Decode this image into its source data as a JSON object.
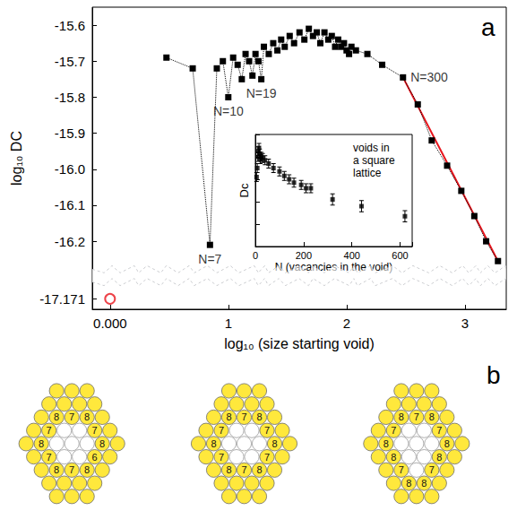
{
  "chart_data": [
    {
      "type": "line",
      "panel": "a",
      "x_label": "log₁₀ (size starting void)",
      "y_label": "log₁₀ DC",
      "xlim": [
        -0.15,
        3.35
      ],
      "xticks": [
        {
          "value": 0,
          "label": "0.000"
        },
        1,
        2,
        3
      ],
      "ylim": [
        -17.2,
        -15.55
      ],
      "yticks": [
        -17.171,
        -16.2,
        -16.1,
        {
          "value": -16,
          "label": "-16.0"
        },
        -15.9,
        -15.8,
        -15.7,
        -15.6
      ],
      "grid": false,
      "series": [
        {
          "type": "line",
          "color": "#000000",
          "marker": "square",
          "line_style": "dotted",
          "x": [
            0.477,
            0.699,
            0.845,
            0.903,
            0.954,
            1,
            1.041,
            1.079,
            1.114,
            1.146,
            1.176,
            1.204,
            1.23,
            1.255,
            1.279,
            1.301,
            1.342,
            1.38,
            1.415,
            1.447,
            1.477,
            1.519,
            1.556,
            1.602,
            1.643,
            1.681,
            1.716,
            1.748,
            1.778,
            1.813,
            1.845,
            1.875,
            1.903,
            1.929,
            1.954,
            1.978,
            2,
            2.021,
            2.041,
            2.079,
            2.176,
            2.301,
            2.477,
            2.602,
            2.72,
            2.85,
            2.97,
            3.08,
            3.18,
            3.28
          ],
          "values": [
            -15.69,
            -15.72,
            -16.21,
            -15.72,
            -15.7,
            -15.8,
            -15.69,
            -15.71,
            -15.75,
            -15.68,
            -15.7,
            -15.74,
            -15.68,
            -15.7,
            -15.75,
            -15.66,
            -15.68,
            -15.65,
            -15.67,
            -15.64,
            -15.66,
            -15.63,
            -15.65,
            -15.62,
            -15.64,
            -15.61,
            -15.63,
            -15.62,
            -15.65,
            -15.62,
            -15.64,
            -15.63,
            -15.66,
            -15.64,
            -15.66,
            -15.65,
            -15.67,
            -15.68,
            -15.66,
            -15.67,
            -15.68,
            -15.71,
            -15.745,
            -15.82,
            -15.92,
            -15.99,
            -16.06,
            -16.13,
            -16.2,
            -16.255
          ]
        },
        {
          "type": "line",
          "color": "#e8141c",
          "marker": "none",
          "line_style": "solid",
          "x": [
            2.477,
            3.28
          ],
          "values": [
            -15.745,
            -16.255
          ]
        },
        {
          "type": "scatter",
          "color": "#e8141c",
          "marker": "open_circle",
          "x": [
            0
          ],
          "values": [
            -17.171
          ]
        }
      ],
      "annotations": [
        {
          "text": "N=7",
          "x": 0.845,
          "y": -16.21
        },
        {
          "text": "N=10",
          "x": 1,
          "y": -15.8
        },
        {
          "text": "N=19",
          "x": 1.279,
          "y": -15.75
        },
        {
          "text": "N=300",
          "x": 2.477,
          "y": -15.745
        }
      ]
    },
    {
      "type": "scatter",
      "x_label": "N (vacancies in the void)",
      "y_label": "Dc",
      "text": "voids in a square lattice",
      "xlim": [
        0,
        650
      ],
      "xticks": [
        0,
        200,
        400,
        600
      ],
      "ylim": [
        0,
        1
      ],
      "yticks": [
        0,
        0.2,
        0.4,
        0.6,
        0.8,
        1
      ],
      "tick_labels": "x",
      "grid": false,
      "series": [
        {
          "type": "scatter",
          "color": "#000000",
          "marker": "square",
          "x": [
            5,
            8,
            10,
            12,
            15,
            18,
            20,
            25,
            30,
            40,
            55,
            75,
            100,
            120,
            140,
            160,
            190,
            210,
            230,
            320,
            440,
            620
          ],
          "values": [
            0.62,
            0.7,
            0.8,
            0.85,
            0.88,
            0.83,
            0.78,
            0.8,
            0.79,
            0.77,
            0.74,
            0.7,
            0.67,
            0.63,
            0.6,
            0.57,
            0.55,
            0.52,
            0.52,
            0.42,
            0.36,
            0.27
          ],
          "errors": [
            0.04,
            0.04,
            0.04,
            0.04,
            0.04,
            0.04,
            0.04,
            0.04,
            0.04,
            0.04,
            0.04,
            0.04,
            0.04,
            0.04,
            0.04,
            0.04,
            0.04,
            0.04,
            0.04,
            0.05,
            0.05,
            0.05
          ]
        }
      ]
    }
  ],
  "diagram": {
    "panel": "b",
    "clusters": [
      {
        "rows": [
          [
            null,
            null,
            null
          ],
          [
            null,
            null,
            null,
            null
          ],
          [
            null,
            "8",
            "7",
            "8",
            null
          ],
          [
            null,
            "7",
            false,
            false,
            "7",
            null
          ],
          [
            null,
            "8",
            false,
            false,
            false,
            "8",
            null
          ],
          [
            null,
            "7",
            false,
            false,
            "6",
            null
          ],
          [
            null,
            "8",
            "7",
            "8",
            null
          ],
          [
            null,
            null,
            null,
            null
          ],
          [
            null,
            null,
            null
          ]
        ]
      },
      {
        "rows": [
          [
            null,
            null,
            null
          ],
          [
            null,
            null,
            null,
            null
          ],
          [
            null,
            "8",
            "7",
            "8",
            null
          ],
          [
            null,
            "7",
            false,
            false,
            "7",
            null
          ],
          [
            null,
            "8",
            false,
            false,
            false,
            "8",
            null
          ],
          [
            null,
            "7",
            false,
            false,
            "7",
            null
          ],
          [
            null,
            "8",
            "7",
            "8",
            null
          ],
          [
            null,
            null,
            null,
            null
          ],
          [
            null,
            null,
            null
          ]
        ]
      },
      {
        "rows": [
          [
            null,
            null,
            null
          ],
          [
            null,
            null,
            null,
            null
          ],
          [
            null,
            "8",
            "7",
            "8",
            null
          ],
          [
            null,
            "7",
            false,
            false,
            "7",
            null
          ],
          [
            null,
            "8",
            false,
            false,
            false,
            "8",
            null
          ],
          [
            null,
            "8",
            false,
            false,
            "8",
            null
          ],
          [
            null,
            "7",
            false,
            "7",
            null
          ],
          [
            null,
            "8",
            "8",
            null
          ],
          [
            null,
            null,
            null
          ]
        ]
      }
    ]
  }
}
